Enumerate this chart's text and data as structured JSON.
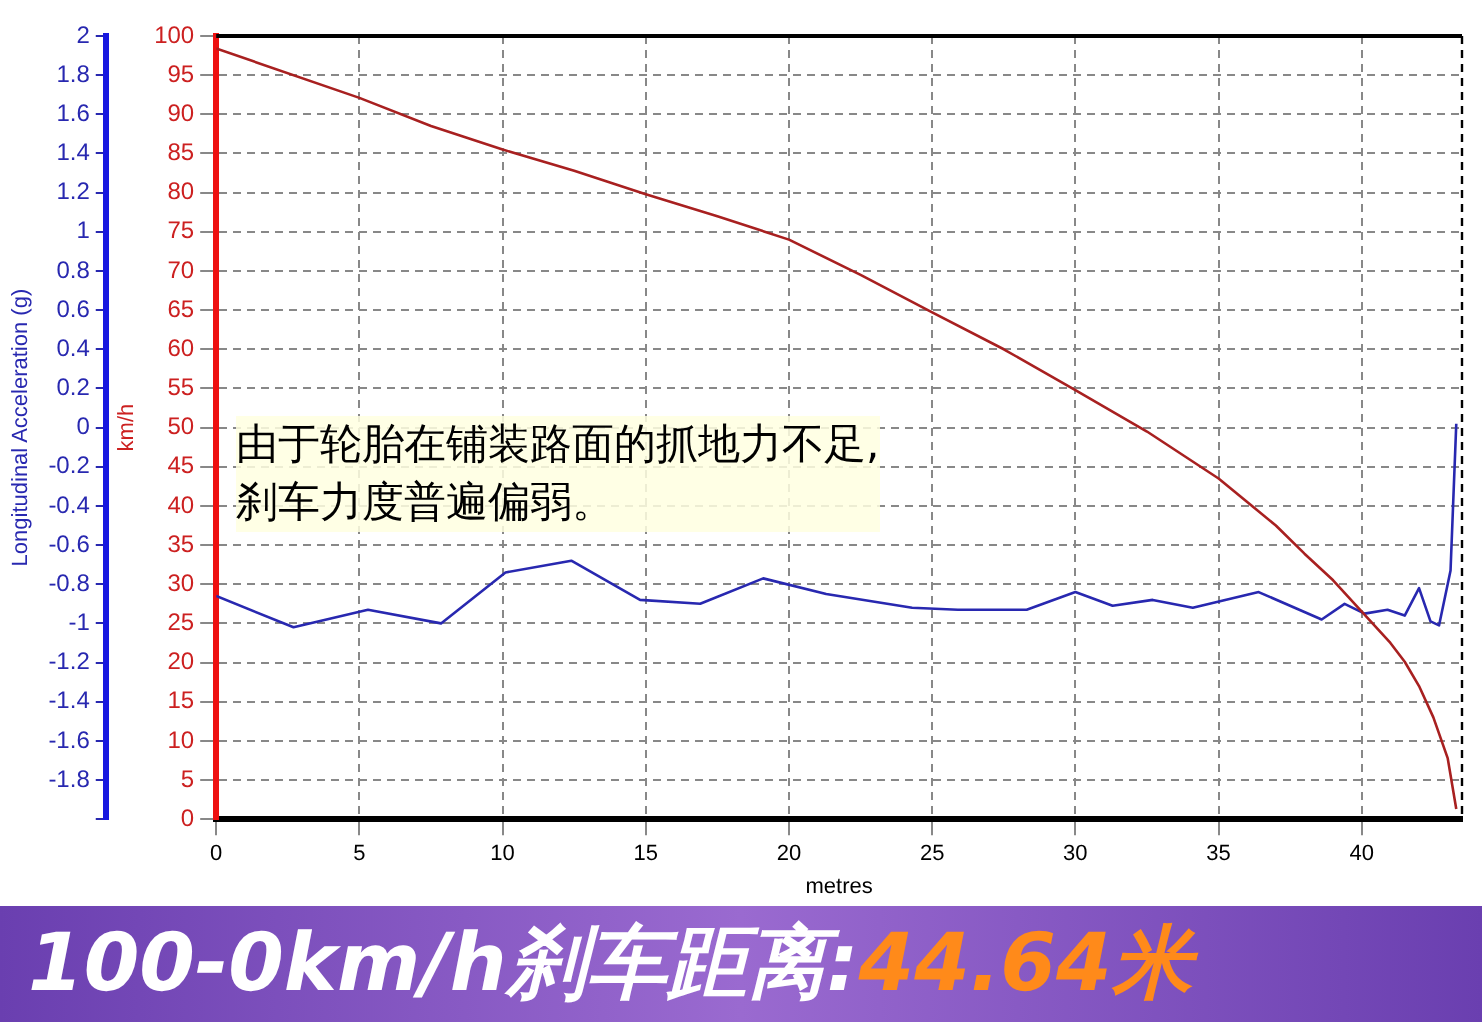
{
  "chart_data": {
    "type": "line",
    "title": "100-0km/h刹车距离:",
    "subtitle": "44.64米",
    "xlabel": "metres",
    "ylabel": "km/h",
    "y2label": "Longitudinal Acceleration (g)",
    "annotations": [
      "由于轮胎在铺装路面的抓地力不足,\n刹车力度普遍偏弱。"
    ],
    "xlim": [
      0,
      43.5
    ],
    "xticks": [
      0,
      5,
      10,
      15,
      20,
      25,
      30,
      35,
      40
    ],
    "ylim": [
      0,
      100
    ],
    "yticks": [
      0,
      5,
      10,
      15,
      20,
      25,
      30,
      35,
      40,
      45,
      50,
      55,
      60,
      65,
      70,
      75,
      80,
      85,
      90,
      95,
      100
    ],
    "y2lim": [
      -2,
      2
    ],
    "y2ticks": [
      {
        "value": -2,
        "label": null
      },
      -1.8,
      -1.6,
      -1.4,
      -1.2,
      -1,
      -0.8,
      -0.6,
      -0.4,
      -0.2,
      0,
      0.2,
      0.4,
      0.6,
      0.8,
      1,
      1.2,
      1.4,
      1.6,
      1.8,
      2
    ],
    "grid": true,
    "marker": "none",
    "line_style": "solid",
    "series": [
      {
        "color": "#a82020",
        "x": [
          0,
          5,
          7.5,
          10,
          12.5,
          15,
          17.5,
          20,
          22.5,
          25,
          27.5,
          30,
          32.5,
          35,
          37,
          38,
          39,
          40,
          41,
          41.5,
          42,
          42.5,
          43,
          43.3
        ],
        "values": [
          98.4,
          92.1,
          88.5,
          85.5,
          82.8,
          79.8,
          77,
          74,
          69.5,
          64.7,
          60,
          54.8,
          49.5,
          43.5,
          37.5,
          33.9,
          30.5,
          26.5,
          22.5,
          20.1,
          17,
          13,
          7.8,
          1.3
        ]
      },
      {
        "color": "#2828b0",
        "axis": "y2",
        "x": [
          0,
          2.7,
          5.3,
          7.85,
          10.1,
          12.4,
          14.8,
          16.9,
          19.1,
          21.3,
          24.3,
          25.9,
          28.3,
          30,
          31.3,
          32.7,
          34.1,
          36.4,
          38.6,
          39.4,
          40.1,
          40.9,
          41.5,
          42,
          42.4,
          42.7,
          43.1,
          43.3
        ],
        "values": [
          -0.86,
          -1.02,
          -0.93,
          -1,
          -0.74,
          -0.68,
          -0.88,
          -0.9,
          -0.77,
          -0.85,
          -0.92,
          -0.93,
          -0.93,
          -0.84,
          -0.91,
          -0.88,
          -0.92,
          -0.84,
          -0.98,
          -0.9,
          -0.95,
          -0.93,
          -0.96,
          -0.82,
          -0.99,
          -1.01,
          -0.73,
          0.02
        ]
      }
    ]
  }
}
